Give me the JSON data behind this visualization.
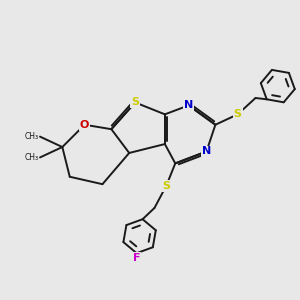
{
  "bg_color": "#e8e8e8",
  "atom_colors": {
    "S": "#cccc00",
    "N": "#0000cc",
    "O": "#cc0000",
    "F": "#cc00cc",
    "C": "#1a1a1a"
  },
  "bond_color": "#1a1a1a",
  "bond_lw": 1.4,
  "figsize": [
    3.0,
    3.0
  ],
  "dpi": 100,
  "xlim": [
    0,
    10
  ],
  "ylim": [
    0,
    10
  ]
}
